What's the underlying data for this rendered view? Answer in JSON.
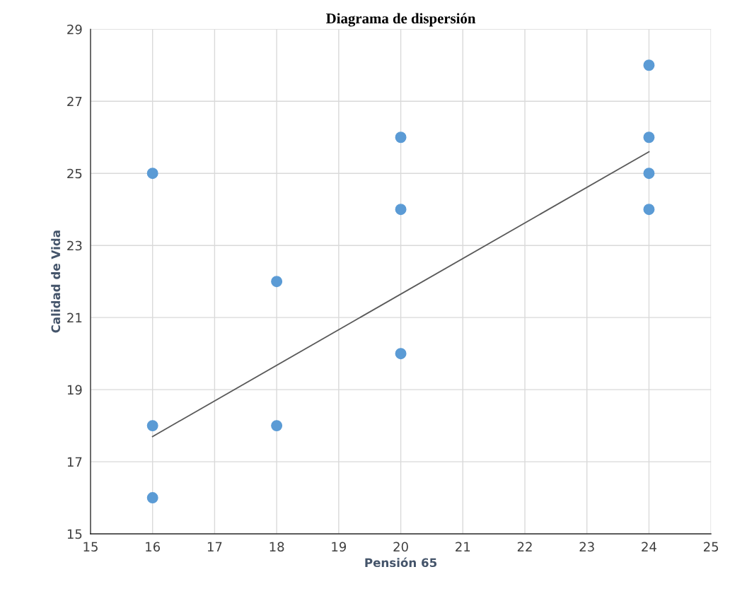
{
  "chart_data": {
    "type": "scatter",
    "title": "Diagrama de dispersión",
    "xlabel": "Pensión 65",
    "ylabel": "Calidad de Vida",
    "xlim": [
      15,
      25
    ],
    "xticks": [
      15,
      16,
      17,
      18,
      19,
      20,
      21,
      22,
      23,
      24,
      25
    ],
    "ylim": [
      15,
      29
    ],
    "yticks": [
      15,
      17,
      19,
      21,
      23,
      25,
      27,
      29
    ],
    "grid": true,
    "series": [
      {
        "color": "#5b9bd5",
        "marker": "circle",
        "x": [
          16,
          16,
          16,
          18,
          18,
          20,
          20,
          20,
          24,
          24,
          24,
          24
        ],
        "values": [
          25,
          18,
          16,
          22,
          18,
          26,
          24,
          20,
          28,
          26,
          25,
          24
        ]
      },
      {
        "type": "line",
        "color": "#595959",
        "x": [
          16,
          24
        ],
        "values": [
          17.7,
          25.6
        ]
      }
    ]
  }
}
